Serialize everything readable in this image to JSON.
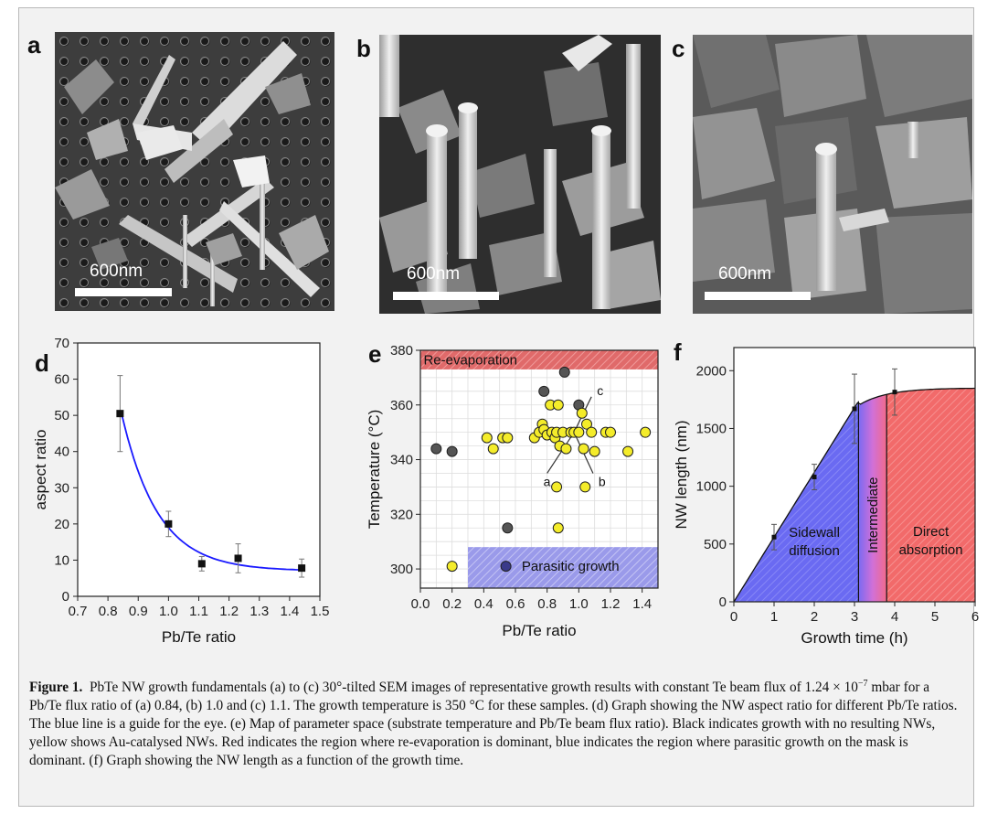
{
  "panels": {
    "a": {
      "label": "a",
      "scale": "600nm"
    },
    "b": {
      "label": "b",
      "scale": "600nm"
    },
    "c": {
      "label": "c",
      "scale": "600nm"
    },
    "d": {
      "label": "d"
    },
    "e": {
      "label": "e"
    },
    "f": {
      "label": "f"
    }
  },
  "caption": {
    "figure_label": "Figure 1.",
    "text_1": "PbTe NW growth fundamentals (a) to (c) 30°-tilted SEM images of representative growth results with constant Te beam flux of 1.24 × 10",
    "exponent": "−7",
    "text_2": " mbar for a Pb/Te flux ratio of (a) 0.84, (b) 1.0 and (c) 1.1. The growth temperature is 350 °C for these samples. (d) Graph showing the NW aspect ratio for different Pb/Te ratios. The blue line is a guide for the eye. (e) Map of parameter space (substrate temperature and Pb/Te beam flux ratio). Black indicates growth with no resulting NWs, yellow shows Au-catalysed NWs. Red indicates the region where re-evaporation is dominant, blue indicates the region where parasitic growth on the mask is dominant. (f) Graph showing the NW length as a function of the growth time."
  },
  "chart_data": [
    {
      "panel": "d",
      "type": "scatter",
      "xlabel": "Pb/Te ratio",
      "ylabel": "aspect ratio",
      "xlim": [
        0.7,
        1.5
      ],
      "ylim": [
        0,
        70
      ],
      "xticks": [
        "0.7",
        "0.8",
        "0.9",
        "1.0",
        "1.1",
        "1.2",
        "1.3",
        "1.4",
        "1.5"
      ],
      "yticks": [
        "0",
        "10",
        "20",
        "30",
        "40",
        "50",
        "60",
        "70"
      ],
      "points": [
        {
          "x": 0.84,
          "y": 50.5,
          "err": 10.5
        },
        {
          "x": 1.0,
          "y": 20,
          "err": 3.5
        },
        {
          "x": 1.11,
          "y": 9,
          "err": 2
        },
        {
          "x": 1.23,
          "y": 10.5,
          "err": 4
        },
        {
          "x": 1.44,
          "y": 7.8,
          "err": 2.5
        }
      ],
      "fit_color": "#1a1aff",
      "grid": false
    },
    {
      "panel": "e",
      "type": "scatter",
      "xlabel": "Pb/Te ratio",
      "ylabel": "Temperature (°C)",
      "xlim": [
        0.0,
        1.5
      ],
      "ylim": [
        293,
        380
      ],
      "xticks": [
        "0.0",
        "0.2",
        "0.4",
        "0.6",
        "0.8",
        "1.0",
        "1.2",
        "1.4"
      ],
      "yticks": [
        "300",
        "320",
        "340",
        "360",
        "380"
      ],
      "regions": [
        {
          "name": "Re-evaporation",
          "color": "#e05555",
          "x": [
            0.0,
            1.5
          ],
          "y": [
            373,
            380
          ]
        },
        {
          "name": "Parasitic growth",
          "color": "#8080e0",
          "x": [
            0.3,
            1.5
          ],
          "y": [
            293,
            308
          ]
        }
      ],
      "series": [
        {
          "name": "no NWs",
          "color": "#555555",
          "points": [
            [
              0.1,
              344
            ],
            [
              0.2,
              343
            ],
            [
              0.55,
              315
            ],
            [
              0.78,
              365
            ],
            [
              0.91,
              372
            ],
            [
              1.0,
              360
            ]
          ]
        },
        {
          "name": "Au-catalysed NWs",
          "color": "#f4ec2a",
          "points": [
            [
              0.2,
              301
            ],
            [
              0.42,
              348
            ],
            [
              0.46,
              344
            ],
            [
              0.52,
              348
            ],
            [
              0.55,
              348
            ],
            [
              0.72,
              348
            ],
            [
              0.75,
              350
            ],
            [
              0.77,
              353
            ],
            [
              0.78,
              351
            ],
            [
              0.8,
              349
            ],
            [
              0.82,
              360
            ],
            [
              0.83,
              350
            ],
            [
              0.85,
              348
            ],
            [
              0.86,
              350
            ],
            [
              0.87,
              360
            ],
            [
              0.88,
              345
            ],
            [
              0.9,
              350
            ],
            [
              0.92,
              344
            ],
            [
              0.95,
              350
            ],
            [
              0.97,
              350
            ],
            [
              1.0,
              350
            ],
            [
              1.02,
              357
            ],
            [
              1.05,
              353
            ],
            [
              1.08,
              350
            ],
            [
              1.1,
              343
            ],
            [
              1.17,
              350
            ],
            [
              1.2,
              350
            ],
            [
              1.31,
              343
            ],
            [
              1.42,
              350
            ],
            [
              0.86,
              330
            ],
            [
              0.87,
              315
            ],
            [
              1.04,
              330
            ],
            [
              1.03,
              344
            ]
          ]
        },
        {
          "name": "parasitic",
          "color": "#3a3a8a",
          "points": [
            [
              0.54,
              301
            ]
          ]
        }
      ],
      "annotations": [
        "a",
        "b",
        "c"
      ],
      "grid": true
    },
    {
      "panel": "f",
      "type": "line",
      "xlabel": "Growth time (h)",
      "ylabel": "NW length (nm)",
      "xlim": [
        0,
        6
      ],
      "ylim": [
        0,
        2200
      ],
      "xticks": [
        "0",
        "1",
        "2",
        "3",
        "4",
        "5",
        "6"
      ],
      "yticks": [
        "0",
        "500",
        "1000",
        "1500",
        "2000"
      ],
      "points": [
        {
          "x": 1,
          "y": 560,
          "err": 110
        },
        {
          "x": 2,
          "y": 1080,
          "err": 110
        },
        {
          "x": 3,
          "y": 1670,
          "err": 300
        },
        {
          "x": 4,
          "y": 1815,
          "err": 200
        }
      ],
      "regions": [
        {
          "name": "Sidewall diffusion",
          "color": "#5a5af0",
          "x": [
            0,
            3.1
          ]
        },
        {
          "name": "Intermediate",
          "color": "#d070d0",
          "x": [
            3.1,
            3.8
          ]
        },
        {
          "name": "Direct absorption",
          "color": "#f06060",
          "x": [
            3.8,
            6
          ]
        }
      ],
      "region_labels": [
        "Sidewall",
        "diffusion",
        "Intermediate",
        "Direct",
        "absorption"
      ]
    }
  ]
}
